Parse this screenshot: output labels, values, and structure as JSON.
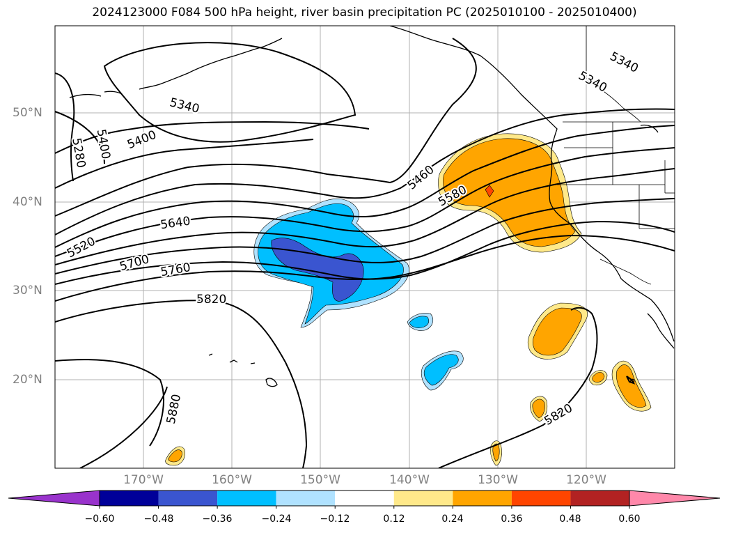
{
  "title": "2024123000 F084 500 hPa height, river basin precipitation PC (2025010100 - 2025010400)",
  "lat_labels": [
    "50°N",
    "40°N",
    "30°N",
    "20°N"
  ],
  "lon_labels": [
    "170°W",
    "160°W",
    "150°W",
    "140°W",
    "130°W",
    "120°W"
  ],
  "contour_labels": [
    "5340",
    "5340",
    "5280",
    "5400",
    "5400",
    "5340",
    "5460",
    "5580",
    "5520",
    "5640",
    "5700",
    "5760",
    "5820",
    "5880",
    "5820"
  ],
  "colorbar": {
    "tick_labels": [
      "−0.60",
      "−0.48",
      "−0.36",
      "−0.24",
      "−0.12",
      "0.12",
      "0.24",
      "0.36",
      "0.48",
      "0.60"
    ],
    "colors": [
      "#9933cc",
      "#000099",
      "#3a55d0",
      "#00bfff",
      "#b0e2ff",
      "#ffffff",
      "#ffe98a",
      "#ffa500",
      "#ff4500",
      "#b22222",
      "#ff88aa"
    ]
  },
  "fill_colors": {
    "neg_light": "#b0e2ff",
    "neg_mid": "#00bfff",
    "neg_dark": "#3a55d0",
    "pos_light": "#ffe98a",
    "pos_mid": "#ffa500",
    "pos_dark": "#ff4500"
  }
}
